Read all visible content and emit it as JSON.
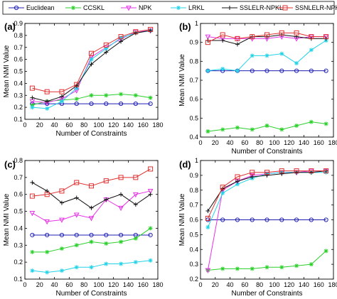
{
  "legend": {
    "entries": [
      {
        "name": "Euclidean",
        "color": "#1f1fb4",
        "marker": "circle"
      },
      {
        "name": "CCSKL",
        "color": "#2ad02a",
        "marker": "star"
      },
      {
        "name": "NPK",
        "color": "#e632e6",
        "marker": "triangle-down"
      },
      {
        "name": "LRKL",
        "color": "#22d3e8",
        "marker": "star"
      },
      {
        "name": "SSLELR-NPKL",
        "color": "#111111",
        "marker": "plus"
      },
      {
        "name": "SSNLELR-NPKL",
        "color": "#e03030",
        "marker": "square"
      }
    ]
  },
  "chart_data": [
    {
      "panel": "(a)",
      "type": "line",
      "xlabel": "Number of Constraints",
      "ylabel": "Mean NMI Value",
      "xlim": [
        0,
        180
      ],
      "ylim": [
        0.1,
        0.9
      ],
      "xticks": [
        "0",
        "20",
        "40",
        "60",
        "80",
        "100",
        "120",
        "140",
        "160",
        "180"
      ],
      "yticks": [
        "0.1",
        "0.2",
        "0.3",
        "0.4",
        "0.5",
        "0.6",
        "0.7",
        "0.8",
        "0.9"
      ],
      "x": [
        10,
        30,
        50,
        70,
        90,
        110,
        130,
        150,
        170
      ],
      "series": [
        {
          "name": "Euclidean",
          "values": [
            0.23,
            0.23,
            0.23,
            0.23,
            0.23,
            0.23,
            0.23,
            0.23,
            0.23
          ]
        },
        {
          "name": "CCSKL",
          "values": [
            0.22,
            0.25,
            0.26,
            0.27,
            0.3,
            0.3,
            0.31,
            0.3,
            0.28
          ]
        },
        {
          "name": "NPK",
          "values": [
            0.25,
            0.24,
            0.27,
            0.34,
            0.62,
            0.7,
            0.77,
            0.83,
            0.84
          ]
        },
        {
          "name": "LRKL",
          "values": [
            0.2,
            0.19,
            0.25,
            0.36,
            0.6,
            0.69,
            0.78,
            0.82,
            0.84
          ]
        },
        {
          "name": "SSLELR-NPKL",
          "values": [
            0.28,
            0.25,
            0.29,
            0.38,
            0.56,
            0.66,
            0.75,
            0.82,
            0.84
          ]
        },
        {
          "name": "SSNLELR-NPKL",
          "values": [
            0.36,
            0.33,
            0.33,
            0.39,
            0.65,
            0.72,
            0.79,
            0.83,
            0.85
          ]
        }
      ]
    },
    {
      "panel": "(b)",
      "type": "line",
      "xlabel": "Number of Constraints",
      "ylabel": "Mean NMI Value",
      "xlim": [
        0,
        180
      ],
      "ylim": [
        0.4,
        1.0
      ],
      "xticks": [
        "0",
        "20",
        "40",
        "60",
        "80",
        "100",
        "120",
        "140",
        "160",
        "180"
      ],
      "yticks": [
        "0.4",
        "0.5",
        "0.6",
        "0.7",
        "0.8",
        "0.9",
        "1"
      ],
      "x": [
        10,
        30,
        50,
        70,
        90,
        110,
        130,
        150,
        170
      ],
      "series": [
        {
          "name": "Euclidean",
          "values": [
            0.75,
            0.75,
            0.75,
            0.75,
            0.75,
            0.75,
            0.75,
            0.75,
            0.75
          ]
        },
        {
          "name": "CCSKL",
          "values": [
            0.43,
            0.44,
            0.45,
            0.44,
            0.46,
            0.44,
            0.46,
            0.48,
            0.47
          ]
        },
        {
          "name": "NPK",
          "values": [
            0.93,
            0.92,
            0.92,
            0.92,
            0.92,
            0.93,
            0.92,
            0.93,
            0.93
          ]
        },
        {
          "name": "LRKL",
          "values": [
            0.75,
            0.76,
            0.75,
            0.83,
            0.83,
            0.84,
            0.79,
            0.86,
            0.91
          ]
        },
        {
          "name": "SSLELR-NPKL",
          "values": [
            0.91,
            0.91,
            0.89,
            0.93,
            0.93,
            0.94,
            0.93,
            0.92,
            0.92
          ]
        },
        {
          "name": "SSNLELR-NPKL",
          "values": [
            0.9,
            0.94,
            0.92,
            0.93,
            0.94,
            0.95,
            0.95,
            0.93,
            0.93
          ]
        }
      ]
    },
    {
      "panel": "(c)",
      "type": "line",
      "xlabel": "Number of Constraints",
      "ylabel": "Mean NMI Value",
      "xlim": [
        0,
        180
      ],
      "ylim": [
        0.1,
        0.8
      ],
      "xticks": [
        "0",
        "20",
        "40",
        "60",
        "80",
        "100",
        "120",
        "140",
        "160",
        "180"
      ],
      "yticks": [
        "0.1",
        "0.2",
        "0.3",
        "0.4",
        "0.5",
        "0.6",
        "0.7",
        "0.8"
      ],
      "x": [
        10,
        30,
        50,
        70,
        90,
        110,
        130,
        150,
        170
      ],
      "series": [
        {
          "name": "Euclidean",
          "values": [
            0.36,
            0.36,
            0.36,
            0.36,
            0.36,
            0.36,
            0.36,
            0.36,
            0.36
          ]
        },
        {
          "name": "CCSKL",
          "values": [
            0.26,
            0.26,
            0.28,
            0.3,
            0.32,
            0.31,
            0.32,
            0.34,
            0.4
          ]
        },
        {
          "name": "NPK",
          "values": [
            0.49,
            0.44,
            0.45,
            0.48,
            0.46,
            0.57,
            0.52,
            0.6,
            0.62
          ]
        },
        {
          "name": "LRKL",
          "values": [
            0.15,
            0.14,
            0.15,
            0.17,
            0.17,
            0.19,
            0.19,
            0.2,
            0.21
          ]
        },
        {
          "name": "SSLELR-NPKL",
          "values": [
            0.67,
            0.62,
            0.55,
            0.58,
            0.52,
            0.57,
            0.6,
            0.54,
            0.6
          ]
        },
        {
          "name": "SSNLELR-NPKL",
          "values": [
            0.59,
            0.6,
            0.62,
            0.67,
            0.65,
            0.68,
            0.7,
            0.7,
            0.75
          ]
        }
      ]
    },
    {
      "panel": "(d)",
      "type": "line",
      "xlabel": "Number of Constraints",
      "ylabel": "Mean NMI Value",
      "xlim": [
        0,
        180
      ],
      "ylim": [
        0.2,
        1.0
      ],
      "xticks": [
        "0",
        "20",
        "40",
        "60",
        "80",
        "100",
        "120",
        "140",
        "160",
        "180"
      ],
      "yticks": [
        "0.2",
        "0.3",
        "0.4",
        "0.5",
        "0.6",
        "0.7",
        "0.8",
        "0.9",
        "1"
      ],
      "x": [
        10,
        30,
        50,
        70,
        90,
        110,
        130,
        150,
        170
      ],
      "series": [
        {
          "name": "Euclidean",
          "values": [
            0.6,
            0.6,
            0.6,
            0.6,
            0.6,
            0.6,
            0.6,
            0.6,
            0.6
          ]
        },
        {
          "name": "CCSKL",
          "values": [
            0.26,
            0.27,
            0.27,
            0.27,
            0.28,
            0.28,
            0.29,
            0.3,
            0.39
          ]
        },
        {
          "name": "NPK",
          "values": [
            0.26,
            0.8,
            0.86,
            0.9,
            0.91,
            0.92,
            0.92,
            0.93,
            0.93
          ]
        },
        {
          "name": "LRKL",
          "values": [
            0.55,
            0.78,
            0.84,
            0.88,
            0.91,
            0.92,
            0.92,
            0.92,
            0.92
          ]
        },
        {
          "name": "SSLELR-NPKL",
          "values": [
            0.66,
            0.81,
            0.86,
            0.89,
            0.9,
            0.91,
            0.92,
            0.92,
            0.93
          ]
        },
        {
          "name": "SSNLELR-NPKL",
          "values": [
            0.61,
            0.82,
            0.89,
            0.92,
            0.92,
            0.93,
            0.93,
            0.93,
            0.93
          ]
        }
      ]
    }
  ]
}
